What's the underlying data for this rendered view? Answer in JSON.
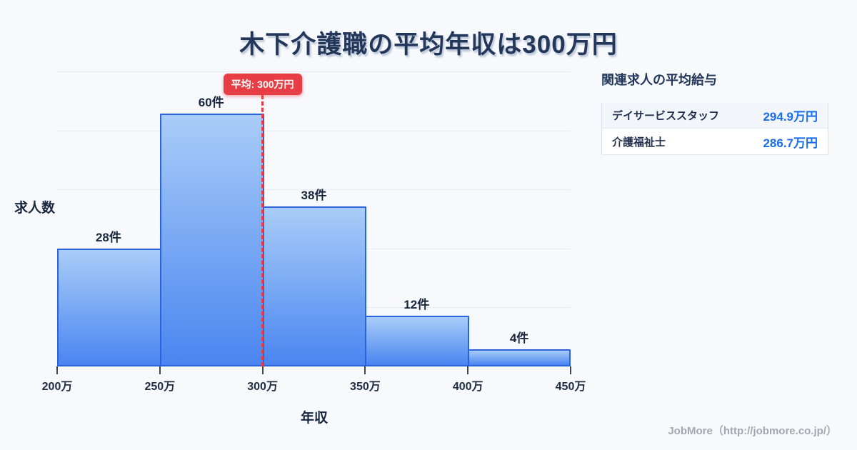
{
  "title": "木下介護職の平均年収は300万円",
  "chart_data": {
    "type": "bar",
    "subtype": "histogram",
    "categories": [
      "200万-250万",
      "250万-300万",
      "300万-350万",
      "350万-400万",
      "400万-450万"
    ],
    "values": [
      28,
      60,
      38,
      12,
      4
    ],
    "bar_labels": [
      "28件",
      "60件",
      "38件",
      "12件",
      "4件"
    ],
    "x_ticks": [
      "200万",
      "250万",
      "300万",
      "350万",
      "400万",
      "450万"
    ],
    "x_domain": [
      200,
      450
    ],
    "ylim": [
      0,
      70
    ],
    "grid_divisions": 5,
    "grid": "horizontal-only",
    "xlabel": "年収",
    "ylabel": "求人数",
    "average": {
      "value": 300,
      "label": "平均: 300万円"
    }
  },
  "related_panel": {
    "heading": "関連求人の平均給与",
    "rows": [
      {
        "job": "デイサービススタッフ",
        "salary": "294.9万円"
      },
      {
        "job": "介護福祉士",
        "salary": "286.7万円"
      }
    ]
  },
  "footer": {
    "credit": "JobMore（http://jobmore.co.jp/）"
  },
  "colors": {
    "background": "#f7f9fc",
    "title_navy": "#22375a",
    "bar_gradient_top": "#a9cdf8",
    "bar_gradient_bottom": "#4a85f0",
    "bar_border": "#2b62dd",
    "average_red": "#e83d44",
    "salary_blue": "#1b6ce8",
    "gridline": "#e6ebf4"
  }
}
